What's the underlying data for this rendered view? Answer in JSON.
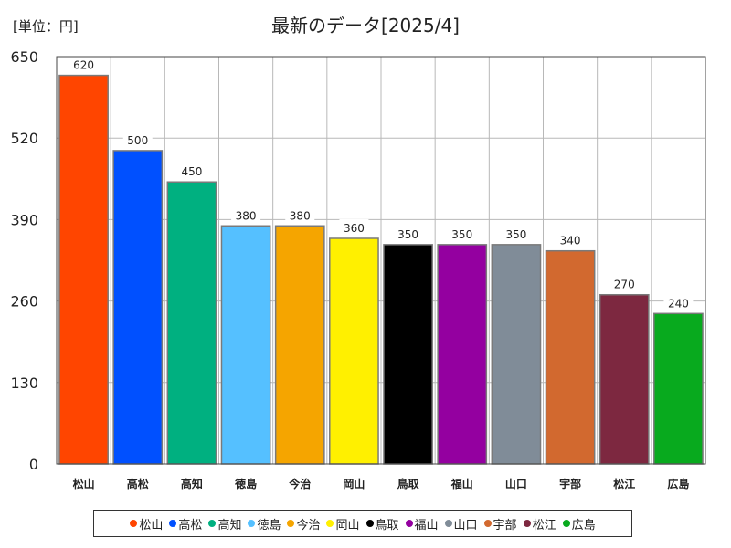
{
  "unit_label": "[単位：円]",
  "chart_data": {
    "type": "bar",
    "title": "最新のデータ[2025/4]",
    "categories": [
      "松山",
      "高松",
      "高知",
      "徳島",
      "今治",
      "岡山",
      "鳥取",
      "福山",
      "山口",
      "宇部",
      "松江",
      "広島"
    ],
    "values": [
      620,
      500,
      450,
      380,
      380,
      360,
      350,
      350,
      350,
      340,
      270,
      240
    ],
    "colors": [
      "#ff4500",
      "#0050ff",
      "#00b080",
      "#55c0ff",
      "#f5a500",
      "#fff000",
      "#000000",
      "#9400a0",
      "#808c98",
      "#d2692f",
      "#7d2840",
      "#08aa1e"
    ],
    "ylim": [
      0,
      650
    ],
    "yticks": [
      0,
      130,
      260,
      390,
      520,
      650
    ],
    "grid": true,
    "legend_position": "bottom"
  }
}
